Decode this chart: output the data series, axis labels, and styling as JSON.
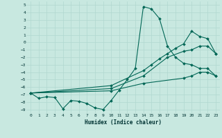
{
  "xlabel": "Humidex (Indice chaleur)",
  "bg_color": "#c8e8e0",
  "line_color": "#006655",
  "grid_color": "#b0d8d0",
  "xlim": [
    -0.5,
    23.5
  ],
  "ylim": [
    -9.5,
    5.5
  ],
  "xticks": [
    0,
    1,
    2,
    3,
    4,
    5,
    6,
    7,
    8,
    9,
    10,
    11,
    12,
    13,
    14,
    15,
    16,
    17,
    18,
    19,
    20,
    21,
    22,
    23
  ],
  "yticks": [
    5,
    4,
    3,
    2,
    1,
    0,
    -1,
    -2,
    -3,
    -4,
    -5,
    -6,
    -7,
    -8,
    -9
  ],
  "lines": [
    {
      "x": [
        0,
        1,
        2,
        3,
        4,
        5,
        6,
        7,
        8,
        9,
        10,
        11,
        12,
        13,
        14,
        15,
        16,
        17,
        18,
        19,
        20,
        21,
        22,
        23
      ],
      "y": [
        -6.8,
        -7.5,
        -7.3,
        -7.4,
        -8.9,
        -7.8,
        -7.9,
        -8.2,
        -8.8,
        -9.0,
        -7.8,
        -6.4,
        -5.0,
        -3.5,
        4.8,
        4.5,
        3.2,
        -0.5,
        -2.0,
        -2.8,
        -3.0,
        -3.5,
        -3.5,
        -4.5
      ]
    },
    {
      "x": [
        0,
        10,
        14,
        19,
        20,
        21,
        22,
        23
      ],
      "y": [
        -6.8,
        -6.5,
        -5.5,
        -4.8,
        -4.5,
        -4.0,
        -4.0,
        -4.5
      ]
    },
    {
      "x": [
        0,
        10,
        14,
        17,
        19,
        20,
        21,
        22,
        23
      ],
      "y": [
        -6.8,
        -6.2,
        -4.5,
        -2.0,
        -1.2,
        -1.0,
        -0.5,
        -0.5,
        -1.5
      ]
    },
    {
      "x": [
        0,
        10,
        14,
        15,
        16,
        17,
        18,
        19,
        20,
        21,
        22,
        23
      ],
      "y": [
        -6.8,
        -5.8,
        -3.8,
        -3.0,
        -2.2,
        -1.5,
        -0.8,
        -0.2,
        1.5,
        0.8,
        0.5,
        -1.5
      ]
    }
  ]
}
